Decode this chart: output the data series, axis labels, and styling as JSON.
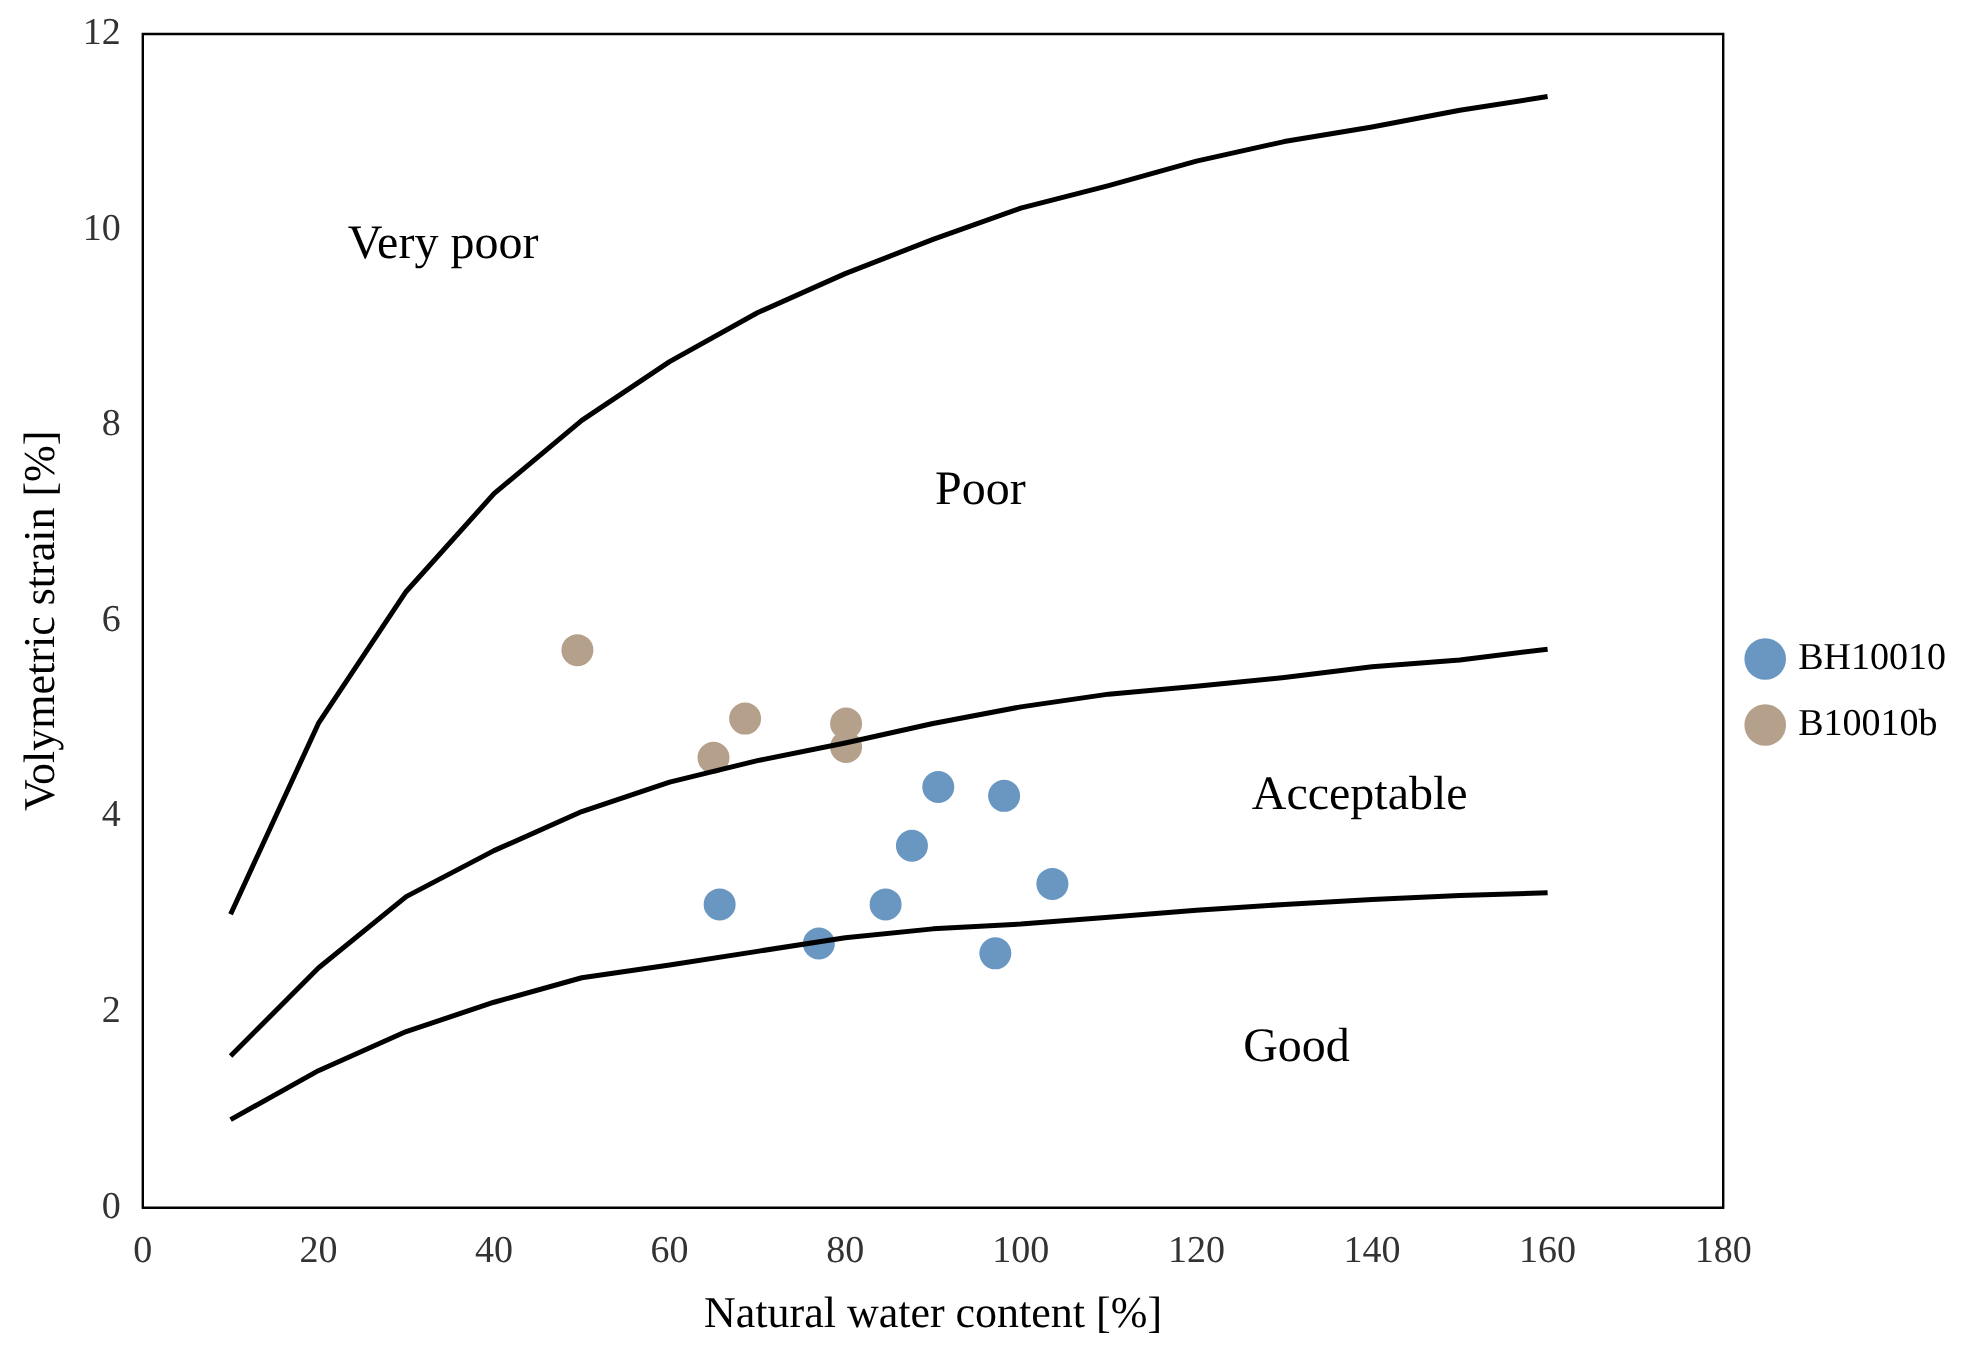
{
  "chart_data": {
    "type": "scatter",
    "xlabel": "Natural water content [%]",
    "ylabel": "Volymetric strain [%]",
    "xlim": [
      0,
      180
    ],
    "xticks": [
      0,
      20,
      40,
      60,
      80,
      100,
      120,
      140,
      160,
      180
    ],
    "ylim": [
      0,
      12
    ],
    "yticks": [
      0,
      2,
      4,
      6,
      8,
      10,
      12
    ],
    "grid": false,
    "legend": "right",
    "marker": "circle",
    "series": [
      {
        "type": "line",
        "color": "#000000",
        "marker": "none",
        "x": [
          10,
          20,
          30,
          40,
          50,
          60,
          70,
          80,
          90,
          100,
          110,
          120,
          130,
          140,
          150,
          160
        ],
        "values": [
          3.0,
          4.95,
          6.3,
          7.3,
          8.05,
          8.65,
          9.15,
          9.55,
          9.9,
          10.22,
          10.45,
          10.7,
          10.9,
          11.05,
          11.22,
          11.36
        ]
      },
      {
        "type": "line",
        "color": "#000000",
        "marker": "none",
        "x": [
          10,
          20,
          30,
          40,
          50,
          60,
          70,
          80,
          90,
          100,
          110,
          120,
          130,
          140,
          150,
          160
        ],
        "values": [
          1.55,
          2.45,
          3.18,
          3.65,
          4.05,
          4.35,
          4.57,
          4.75,
          4.95,
          5.12,
          5.25,
          5.33,
          5.42,
          5.53,
          5.6,
          5.71
        ]
      },
      {
        "type": "line",
        "color": "#000000",
        "marker": "none",
        "x": [
          10,
          20,
          30,
          40,
          50,
          60,
          70,
          80,
          90,
          100,
          110,
          120,
          130,
          140,
          150,
          160
        ],
        "values": [
          0.9,
          1.4,
          1.8,
          2.1,
          2.35,
          2.48,
          2.62,
          2.76,
          2.85,
          2.9,
          2.97,
          3.04,
          3.1,
          3.15,
          3.19,
          3.22
        ]
      },
      {
        "type": "scatter",
        "name": "BH10010",
        "color": "#6a97c1",
        "x": [
          65.7,
          77.0,
          84.6,
          87.6,
          90.6,
          98.1,
          103.6,
          97.1
        ],
        "values": [
          3.1,
          2.7,
          3.1,
          3.7,
          4.3,
          4.21,
          3.31,
          2.6
        ]
      },
      {
        "type": "scatter",
        "name": "B10010b",
        "color": "#b5a08b",
        "x": [
          49.5,
          68.6,
          65.0,
          80.1,
          80.1
        ],
        "values": [
          5.7,
          5.0,
          4.6,
          4.95,
          4.71
        ]
      }
    ],
    "annotations": [
      "Very poor",
      "Poor",
      "Acceptable",
      "Good"
    ]
  }
}
